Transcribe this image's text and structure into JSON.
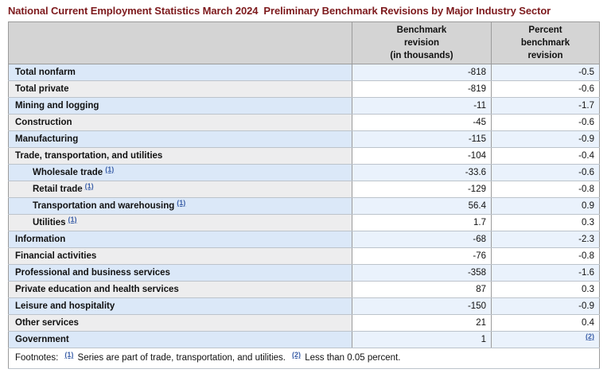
{
  "title": "National Current Employment Statistics March 2024  Preliminary Benchmark Revisions by Major Industry Sector",
  "colors": {
    "title_text": "#7d1a1d",
    "header_bg": "#d4d4d4",
    "row_blue_label_bg": "#dbe8f8",
    "row_blue_value_bg": "#eaf2fc",
    "row_gray_label_bg": "#ededee",
    "row_white_value_bg": "#ffffff",
    "footnote_link": "#3b5fa8",
    "border_dark": "#9b9b9b",
    "border_light": "#bcc3cb"
  },
  "table": {
    "columns": [
      {
        "label": ""
      },
      {
        "label": "Benchmark\nrevision\n(in thousands)"
      },
      {
        "label": "Percent\nbenchmark\nrevision"
      }
    ],
    "rows": [
      {
        "label": "Total nonfarm",
        "indent": false,
        "benchmark": "-818",
        "percent": "-0.5"
      },
      {
        "label": "Total private",
        "indent": false,
        "benchmark": "-819",
        "percent": "-0.6"
      },
      {
        "label": "Mining and logging",
        "indent": false,
        "benchmark": "-11",
        "percent": "-1.7"
      },
      {
        "label": "Construction",
        "indent": false,
        "benchmark": "-45",
        "percent": "-0.6"
      },
      {
        "label": "Manufacturing",
        "indent": false,
        "benchmark": "-115",
        "percent": "-0.9"
      },
      {
        "label": "Trade, transportation, and utilities",
        "indent": false,
        "benchmark": "-104",
        "percent": "-0.4"
      },
      {
        "label": "Wholesale trade",
        "footnote": "(1)",
        "indent": true,
        "benchmark": "-33.6",
        "percent": "-0.6"
      },
      {
        "label": "Retail trade",
        "footnote": "(1)",
        "indent": true,
        "benchmark": "-129",
        "percent": "-0.8"
      },
      {
        "label": "Transportation and warehousing",
        "footnote": "(1)",
        "indent": true,
        "benchmark": "56.4",
        "percent": "0.9"
      },
      {
        "label": "Utilities",
        "footnote": "(1)",
        "indent": true,
        "benchmark": "1.7",
        "percent": "0.3"
      },
      {
        "label": "Information",
        "indent": false,
        "benchmark": "-68",
        "percent": "-2.3"
      },
      {
        "label": "Financial activities",
        "indent": false,
        "benchmark": "-76",
        "percent": "-0.8"
      },
      {
        "label": "Professional and business services",
        "indent": false,
        "benchmark": "-358",
        "percent": "-1.6"
      },
      {
        "label": "Private education and health services",
        "indent": false,
        "benchmark": "87",
        "percent": "0.3"
      },
      {
        "label": "Leisure and hospitality",
        "indent": false,
        "benchmark": "-150",
        "percent": "-0.9"
      },
      {
        "label": "Other services",
        "indent": false,
        "benchmark": "21",
        "percent": "0.4"
      },
      {
        "label": "Government",
        "indent": false,
        "benchmark": "1",
        "percent": "",
        "percent_footnote": "(2)"
      }
    ]
  },
  "footnotes": {
    "label": "Footnotes:",
    "items": [
      {
        "marker": "(1)",
        "text": "Series are part of trade, transportation, and utilities."
      },
      {
        "marker": "(2)",
        "text": "Less than 0.05 percent."
      }
    ]
  },
  "chart_data": {
    "type": "table",
    "title": "National Current Employment Statistics March 2024 Preliminary Benchmark Revisions by Major Industry Sector",
    "columns": [
      "",
      "Benchmark revision (in thousands)",
      "Percent benchmark revision"
    ],
    "rows": [
      [
        "Total nonfarm",
        -818,
        -0.5
      ],
      [
        "Total private",
        -819,
        -0.6
      ],
      [
        "Mining and logging",
        -11,
        -1.7
      ],
      [
        "Construction",
        -45,
        -0.6
      ],
      [
        "Manufacturing",
        -115,
        -0.9
      ],
      [
        "Trade, transportation, and utilities",
        -104,
        -0.4
      ],
      [
        "Wholesale trade (1)",
        -33.6,
        -0.6
      ],
      [
        "Retail trade (1)",
        -129,
        -0.8
      ],
      [
        "Transportation and warehousing (1)",
        56.4,
        0.9
      ],
      [
        "Utilities (1)",
        1.7,
        0.3
      ],
      [
        "Information",
        -68,
        -2.3
      ],
      [
        "Financial activities",
        -76,
        -0.8
      ],
      [
        "Professional and business services",
        -358,
        -1.6
      ],
      [
        "Private education and health services",
        87,
        0.3
      ],
      [
        "Leisure and hospitality",
        -150,
        -0.9
      ],
      [
        "Other services",
        21,
        0.4
      ],
      [
        "Government",
        1,
        "(2)"
      ]
    ],
    "footnotes": [
      "(1) Series are part of trade, transportation, and utilities.",
      "(2) Less than 0.05 percent."
    ]
  }
}
